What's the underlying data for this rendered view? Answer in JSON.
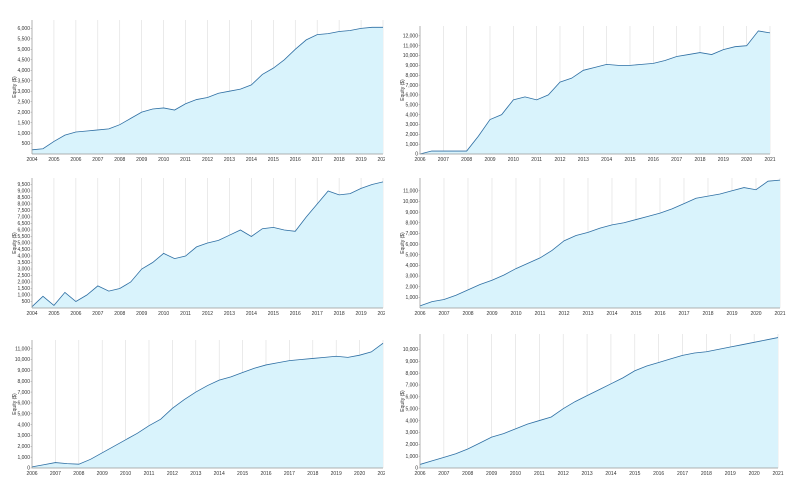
{
  "colors": {
    "fill": "#d9f3fc",
    "line": "#2f6fa3",
    "grid": "#dddddd",
    "axis": "#999999"
  },
  "chart_data": [
    {
      "type": "area",
      "ylabel": "Equity ($)",
      "yticks": [
        "500",
        "1,000",
        "1,500",
        "2,000",
        "2,500",
        "3,000",
        "3,500",
        "4,000",
        "4,500",
        "5,000",
        "5,500",
        "6,000"
      ],
      "ylim": [
        0,
        6400
      ],
      "xticks": [
        "2004",
        "2005",
        "2006",
        "2007",
        "2008",
        "2009",
        "2010",
        "2011",
        "2012",
        "2013",
        "2014",
        "2015",
        "2016",
        "2017",
        "2018",
        "2019",
        "2020"
      ],
      "xlim": [
        2004,
        2020
      ],
      "x": [
        2004.0,
        2004.5,
        2005.0,
        2005.5,
        2006.0,
        2006.5,
        2007.0,
        2007.5,
        2008.0,
        2008.5,
        2009.0,
        2009.5,
        2010.0,
        2010.5,
        2011.0,
        2011.5,
        2012.0,
        2012.5,
        2013.0,
        2013.5,
        2014.0,
        2014.5,
        2015.0,
        2015.5,
        2016.0,
        2016.5,
        2017.0,
        2017.5,
        2018.0,
        2018.5,
        2019.0,
        2019.5,
        2020.0
      ],
      "series": [
        {
          "values": [
            200,
            250,
            600,
            900,
            1050,
            1100,
            1150,
            1200,
            1400,
            1700,
            2000,
            2150,
            2200,
            2100,
            2400,
            2600,
            2700,
            2900,
            3000,
            3100,
            3300,
            3800,
            4100,
            4500,
            5000,
            5450,
            5700,
            5750,
            5850,
            5900,
            6000,
            6050,
            6050
          ]
        }
      ]
    },
    {
      "type": "area",
      "ylabel": "Equity ($)",
      "yticks": [
        "0",
        "1,000",
        "2,000",
        "3,000",
        "4,000",
        "5,000",
        "6,000",
        "7,000",
        "8,000",
        "9,000",
        "10,000",
        "11,000",
        "12,000"
      ],
      "ylim": [
        0,
        13000
      ],
      "xticks": [
        "2006",
        "2007",
        "2008",
        "2009",
        "2010",
        "2011",
        "2012",
        "2013",
        "2014",
        "2015",
        "2016",
        "2017",
        "2018",
        "2019",
        "2020",
        "2021"
      ],
      "xlim": [
        2006,
        2021
      ],
      "x": [
        2006.0,
        2006.5,
        2007.0,
        2007.5,
        2008.0,
        2008.5,
        2009.0,
        2009.5,
        2010.0,
        2010.5,
        2011.0,
        2011.5,
        2012.0,
        2012.5,
        2013.0,
        2013.5,
        2014.0,
        2014.5,
        2015.0,
        2015.5,
        2016.0,
        2016.5,
        2017.0,
        2017.5,
        2018.0,
        2018.5,
        2019.0,
        2019.5,
        2020.0,
        2020.5,
        2021.0
      ],
      "series": [
        {
          "values": [
            0,
            300,
            300,
            300,
            300,
            1800,
            3500,
            4000,
            5500,
            5800,
            5500,
            6000,
            7300,
            7700,
            8500,
            8800,
            9100,
            9000,
            9000,
            9100,
            9200,
            9500,
            9900,
            10100,
            10300,
            10100,
            10600,
            10900,
            11000,
            12500,
            12300
          ]
        }
      ]
    },
    {
      "type": "area",
      "ylabel": "Equity ($)",
      "yticks": [
        "500",
        "1,000",
        "1,500",
        "2,000",
        "2,500",
        "3,000",
        "3,500",
        "4,000",
        "4,500",
        "5,000",
        "5,500",
        "6,000",
        "6,500",
        "7,000",
        "7,500",
        "8,000",
        "8,500",
        "9,000",
        "9,500"
      ],
      "ylim": [
        0,
        10000
      ],
      "xticks": [
        "2004",
        "2005",
        "2006",
        "2007",
        "2008",
        "2009",
        "2010",
        "2011",
        "2012",
        "2013",
        "2014",
        "2015",
        "2016",
        "2017",
        "2018",
        "2019",
        "2020"
      ],
      "xlim": [
        2004,
        2020
      ],
      "x": [
        2004.0,
        2004.5,
        2005.0,
        2005.5,
        2006.0,
        2006.5,
        2007.0,
        2007.5,
        2008.0,
        2008.5,
        2009.0,
        2009.5,
        2010.0,
        2010.5,
        2011.0,
        2011.5,
        2012.0,
        2012.5,
        2013.0,
        2013.5,
        2014.0,
        2014.5,
        2015.0,
        2015.5,
        2016.0,
        2016.5,
        2017.0,
        2017.5,
        2018.0,
        2018.5,
        2019.0,
        2019.5,
        2020.0
      ],
      "series": [
        {
          "values": [
            100,
            900,
            200,
            1200,
            500,
            1000,
            1700,
            1300,
            1500,
            2000,
            3000,
            3500,
            4200,
            3800,
            4000,
            4700,
            5000,
            5200,
            5600,
            6000,
            5500,
            6100,
            6200,
            6000,
            5900,
            7000,
            8000,
            9000,
            8700,
            8800,
            9200,
            9500,
            9700
          ]
        }
      ]
    },
    {
      "type": "area",
      "ylabel": "Equity ($)",
      "yticks": [
        "1,000",
        "2,000",
        "3,000",
        "4,000",
        "5,000",
        "6,000",
        "7,000",
        "8,000",
        "9,000",
        "10,000",
        "11,000"
      ],
      "ylim": [
        0,
        12200
      ],
      "xticks": [
        "2006",
        "2007",
        "2008",
        "2009",
        "2010",
        "2011",
        "2012",
        "2013",
        "2014",
        "2015",
        "2016",
        "2017",
        "2018",
        "2019",
        "2020",
        "2021"
      ],
      "xlim": [
        2006,
        2021
      ],
      "x": [
        2006.0,
        2006.5,
        2007.0,
        2007.5,
        2008.0,
        2008.5,
        2009.0,
        2009.5,
        2010.0,
        2010.5,
        2011.0,
        2011.5,
        2012.0,
        2012.5,
        2013.0,
        2013.5,
        2014.0,
        2014.5,
        2015.0,
        2015.5,
        2016.0,
        2016.5,
        2017.0,
        2017.5,
        2018.0,
        2018.5,
        2019.0,
        2019.5,
        2020.0,
        2020.5,
        2021.0
      ],
      "series": [
        {
          "values": [
            200,
            600,
            800,
            1200,
            1700,
            2200,
            2600,
            3100,
            3700,
            4200,
            4700,
            5400,
            6300,
            6800,
            7100,
            7500,
            7800,
            8000,
            8300,
            8600,
            8900,
            9300,
            9800,
            10300,
            10500,
            10700,
            11000,
            11300,
            11100,
            11900,
            12000
          ]
        }
      ]
    },
    {
      "type": "area",
      "ylabel": "Equity ($)",
      "yticks": [
        "0",
        "1,000",
        "2,000",
        "3,000",
        "4,000",
        "5,000",
        "6,000",
        "7,000",
        "8,000",
        "9,000",
        "10,000",
        "11,000"
      ],
      "ylim": [
        0,
        11800
      ],
      "xticks": [
        "2006",
        "2007",
        "2008",
        "2009",
        "2010",
        "2011",
        "2012",
        "2013",
        "2014",
        "2015",
        "2016",
        "2017",
        "2018",
        "2019",
        "2020",
        "2021"
      ],
      "xlim": [
        2006,
        2021
      ],
      "x": [
        2006.0,
        2006.5,
        2007.0,
        2007.5,
        2008.0,
        2008.5,
        2009.0,
        2009.5,
        2010.0,
        2010.5,
        2011.0,
        2011.5,
        2012.0,
        2012.5,
        2013.0,
        2013.5,
        2014.0,
        2014.5,
        2015.0,
        2015.5,
        2016.0,
        2016.5,
        2017.0,
        2017.5,
        2018.0,
        2018.5,
        2019.0,
        2019.5,
        2020.0,
        2020.5,
        2021.0
      ],
      "series": [
        {
          "values": [
            100,
            300,
            500,
            400,
            350,
            800,
            1400,
            2000,
            2600,
            3200,
            3900,
            4500,
            5500,
            6300,
            7000,
            7600,
            8100,
            8400,
            8800,
            9200,
            9500,
            9700,
            9900,
            10000,
            10100,
            10200,
            10300,
            10200,
            10400,
            10700,
            11500
          ]
        }
      ]
    },
    {
      "type": "area",
      "ylabel": "Equity ($)",
      "yticks": [
        "0",
        "1,000",
        "2,000",
        "3,000",
        "4,000",
        "5,000",
        "6,000",
        "7,000",
        "8,000",
        "9,000",
        "10,000"
      ],
      "ylim": [
        0,
        11300
      ],
      "xticks": [
        "2006",
        "2007",
        "2008",
        "2009",
        "2010",
        "2011",
        "2012",
        "2013",
        "2014",
        "2015",
        "2016",
        "2017",
        "2018",
        "2019",
        "2020",
        "2021"
      ],
      "xlim": [
        2006,
        2021
      ],
      "x": [
        2006.0,
        2006.5,
        2007.0,
        2007.5,
        2008.0,
        2008.5,
        2009.0,
        2009.5,
        2010.0,
        2010.5,
        2011.0,
        2011.5,
        2012.0,
        2012.5,
        2013.0,
        2013.5,
        2014.0,
        2014.5,
        2015.0,
        2015.5,
        2016.0,
        2016.5,
        2017.0,
        2017.5,
        2018.0,
        2018.5,
        2019.0,
        2019.5,
        2020.0,
        2020.5,
        2021.0
      ],
      "series": [
        {
          "values": [
            300,
            600,
            900,
            1200,
            1600,
            2100,
            2600,
            2900,
            3300,
            3700,
            4000,
            4300,
            5000,
            5600,
            6100,
            6600,
            7100,
            7600,
            8200,
            8600,
            8900,
            9200,
            9500,
            9700,
            9800,
            10000,
            10200,
            10400,
            10600,
            10800,
            11000
          ]
        }
      ]
    }
  ]
}
